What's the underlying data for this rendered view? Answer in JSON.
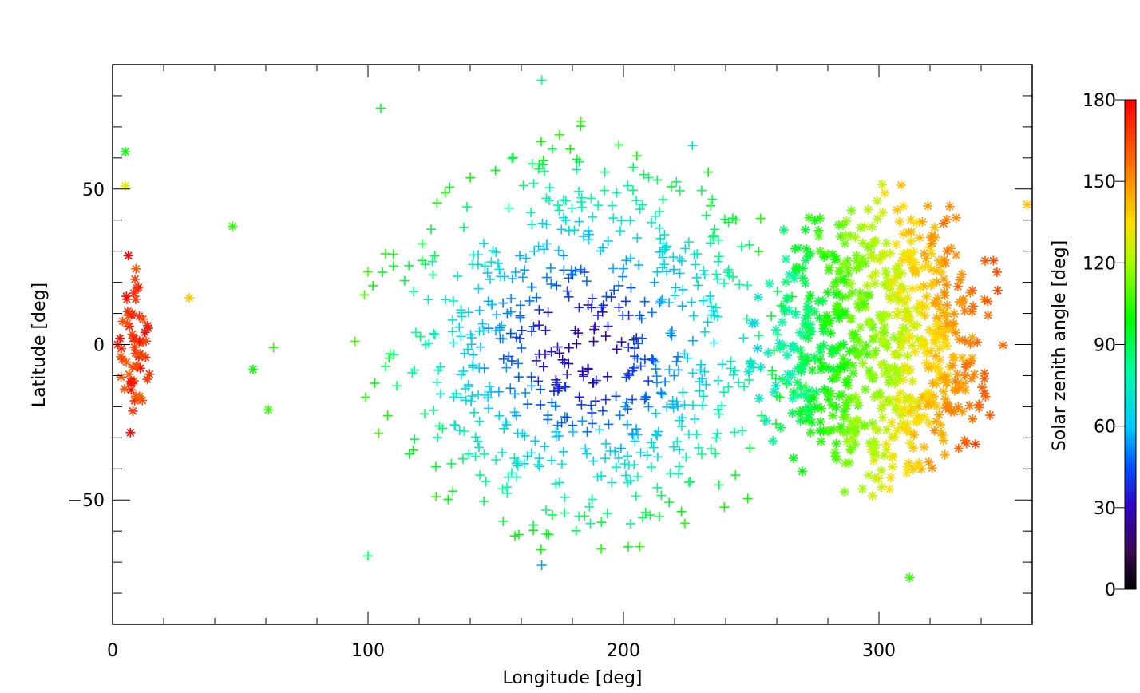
{
  "chart_data": {
    "type": "scatter",
    "title": "",
    "xlabel": "Longitude [deg]",
    "ylabel": "Latitude [deg]",
    "xlim": [
      0,
      360
    ],
    "ylim": [
      -90,
      90
    ],
    "x_ticks": [
      0,
      100,
      200,
      300
    ],
    "x_tick_labels": [
      "0",
      "100",
      "200",
      "300"
    ],
    "y_ticks": [
      -50,
      0,
      50
    ],
    "y_tick_labels": [
      "−50",
      "0",
      "50"
    ],
    "grid": false,
    "markers": [
      "plus",
      "asterisk"
    ],
    "colorbar": {
      "label": "Solar zenith angle [deg]",
      "range": [
        0,
        180
      ],
      "ticks": [
        0,
        30,
        60,
        90,
        120,
        150,
        180
      ],
      "tick_labels": [
        "0",
        "30",
        "60",
        "90",
        "120",
        "150",
        "180"
      ],
      "colormap": "rainbow (black-purple-blue-cyan-green-yellow-orange-red)"
    },
    "clusters": [
      {
        "marker": "plus",
        "lon_center": 185,
        "lat_center": 0,
        "lon_halfwidth": 95,
        "lat_halfwidth": 75,
        "sza_range": [
          20,
          110
        ],
        "count": 700
      },
      {
        "marker": "asterisk",
        "lon_center": 300,
        "lat_center": 0,
        "lon_halfwidth": 55,
        "lat_halfwidth": 55,
        "sza_range": [
          60,
          170
        ],
        "count": 750
      },
      {
        "marker": "asterisk",
        "lon_center": 8,
        "lat_center": 0,
        "lon_halfwidth": 8,
        "lat_halfwidth": 30,
        "sza_range": [
          130,
          180
        ],
        "count": 60
      }
    ],
    "sample_points": [
      {
        "lon": 2,
        "lat": 0,
        "sza": 175,
        "marker": "asterisk"
      },
      {
        "lon": 5,
        "lat": 62,
        "sza": 100,
        "marker": "asterisk"
      },
      {
        "lon": 5,
        "lat": 51,
        "sza": 130,
        "marker": "asterisk"
      },
      {
        "lon": 47,
        "lat": 38,
        "sza": 105,
        "marker": "asterisk"
      },
      {
        "lon": 30,
        "lat": 15,
        "sza": 140,
        "marker": "asterisk"
      },
      {
        "lon": 63,
        "lat": -1,
        "sza": 105,
        "marker": "plus"
      },
      {
        "lon": 55,
        "lat": -8,
        "sza": 100,
        "marker": "asterisk"
      },
      {
        "lon": 61,
        "lat": -21,
        "sza": 105,
        "marker": "asterisk"
      },
      {
        "lon": 105,
        "lat": 76,
        "sza": 95,
        "marker": "plus"
      },
      {
        "lon": 168,
        "lat": 85,
        "sza": 85,
        "marker": "plus"
      },
      {
        "lon": 227,
        "lat": 64,
        "sza": 70,
        "marker": "plus"
      },
      {
        "lon": 312,
        "lat": -75,
        "sza": 105,
        "marker": "asterisk"
      },
      {
        "lon": 100,
        "lat": -68,
        "sza": 90,
        "marker": "plus"
      },
      {
        "lon": 168,
        "lat": -71,
        "sza": 55,
        "marker": "plus"
      },
      {
        "lon": 358,
        "lat": 45,
        "sza": 140,
        "marker": "asterisk"
      }
    ]
  }
}
